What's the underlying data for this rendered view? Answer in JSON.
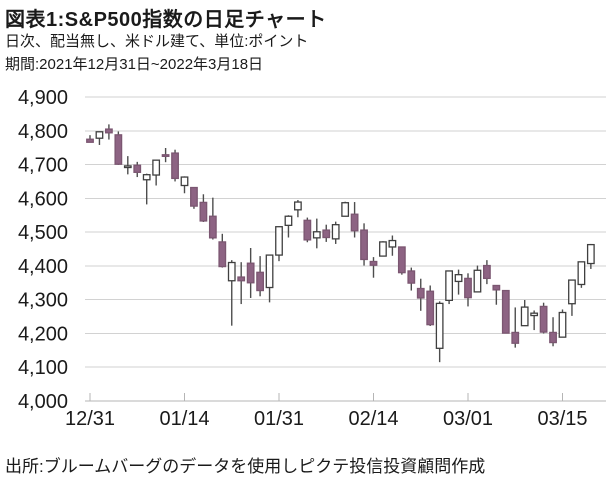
{
  "header": {
    "title": "図表1:S&P500指数の日足チャート",
    "subtitle": "日次、配当無し、米ドル建て、単位:ポイント",
    "period": "期間:2021年12月31日~2022年3月18日"
  },
  "footer": {
    "source": "出所:ブルームバーグのデータを使用しピクテ投信投資顧問作成"
  },
  "chart_data": {
    "type": "candlestick",
    "title": "S&P500指数の日足チャート",
    "xlabel": "",
    "ylabel": "ポイント",
    "ylim": [
      4000,
      4900
    ],
    "y_tick_step": 100,
    "y_tick_labels": [
      "4,000",
      "4,100",
      "4,200",
      "4,300",
      "4,400",
      "4,500",
      "4,600",
      "4,700",
      "4,800",
      "4,900"
    ],
    "x_tick_labels": [
      "12/31",
      "01/14",
      "01/31",
      "02/14",
      "03/01",
      "03/15"
    ],
    "x_tick_indices": [
      0,
      10,
      20,
      30,
      40,
      50
    ],
    "grid": true,
    "legend": "none",
    "dates": [
      "12/31",
      "01/03",
      "01/04",
      "01/05",
      "01/06",
      "01/07",
      "01/10",
      "01/11",
      "01/12",
      "01/13",
      "01/14",
      "01/18",
      "01/19",
      "01/20",
      "01/21",
      "01/24",
      "01/25",
      "01/26",
      "01/27",
      "01/28",
      "01/31",
      "02/01",
      "02/02",
      "02/03",
      "02/04",
      "02/07",
      "02/08",
      "02/09",
      "02/10",
      "02/11",
      "02/14",
      "02/15",
      "02/16",
      "02/17",
      "02/18",
      "02/22",
      "02/23",
      "02/24",
      "02/25",
      "02/28",
      "03/01",
      "03/02",
      "03/03",
      "03/04",
      "03/07",
      "03/08",
      "03/09",
      "03/10",
      "03/11",
      "03/14",
      "03/15",
      "03/16",
      "03/17",
      "03/18"
    ],
    "ohlc": [
      [
        4775,
        4787,
        4766,
        4766
      ],
      [
        4778,
        4797,
        4758,
        4797
      ],
      [
        4805,
        4819,
        4774,
        4794
      ],
      [
        4788,
        4798,
        4699,
        4701
      ],
      [
        4693,
        4725,
        4671,
        4696
      ],
      [
        4698,
        4708,
        4663,
        4677
      ],
      [
        4655,
        4673,
        4582,
        4670
      ],
      [
        4669,
        4714,
        4638,
        4713
      ],
      [
        4729,
        4749,
        4707,
        4726
      ],
      [
        4734,
        4744,
        4650,
        4659
      ],
      [
        4638,
        4665,
        4615,
        4663
      ],
      [
        4632,
        4632,
        4569,
        4577
      ],
      [
        4588,
        4612,
        4530,
        4533
      ],
      [
        4547,
        4602,
        4478,
        4483
      ],
      [
        4471,
        4495,
        4395,
        4398
      ],
      [
        4356,
        4417,
        4223,
        4410
      ],
      [
        4367,
        4411,
        4287,
        4356
      ],
      [
        4408,
        4453,
        4305,
        4350
      ],
      [
        4381,
        4429,
        4310,
        4327
      ],
      [
        4336,
        4433,
        4292,
        4432
      ],
      [
        4432,
        4517,
        4414,
        4516
      ],
      [
        4520,
        4550,
        4484,
        4547
      ],
      [
        4566,
        4595,
        4544,
        4589
      ],
      [
        4535,
        4543,
        4470,
        4477
      ],
      [
        4483,
        4540,
        4452,
        4501
      ],
      [
        4506,
        4522,
        4471,
        4484
      ],
      [
        4480,
        4531,
        4465,
        4522
      ],
      [
        4547,
        4590,
        4547,
        4587
      ],
      [
        4553,
        4589,
        4484,
        4504
      ],
      [
        4506,
        4526,
        4401,
        4419
      ],
      [
        4413,
        4426,
        4365,
        4402
      ],
      [
        4429,
        4473,
        4429,
        4471
      ],
      [
        4456,
        4490,
        4430,
        4475
      ],
      [
        4456,
        4456,
        4374,
        4380
      ],
      [
        4385,
        4395,
        4327,
        4349
      ],
      [
        4333,
        4362,
        4267,
        4305
      ],
      [
        4325,
        4342,
        4222,
        4226
      ],
      [
        4156,
        4295,
        4115,
        4289
      ],
      [
        4298,
        4385,
        4287,
        4385
      ],
      [
        4354,
        4389,
        4315,
        4374
      ],
      [
        4363,
        4378,
        4280,
        4306
      ],
      [
        4323,
        4401,
        4323,
        4387
      ],
      [
        4401,
        4417,
        4346,
        4363
      ],
      [
        4342,
        4342,
        4285,
        4329
      ],
      [
        4327,
        4327,
        4200,
        4201
      ],
      [
        4203,
        4277,
        4158,
        4171
      ],
      [
        4223,
        4299,
        4223,
        4278
      ],
      [
        4253,
        4268,
        4210,
        4260
      ],
      [
        4280,
        4291,
        4200,
        4204
      ],
      [
        4203,
        4248,
        4162,
        4173
      ],
      [
        4189,
        4271,
        4188,
        4262
      ],
      [
        4288,
        4359,
        4252,
        4358
      ],
      [
        4345,
        4413,
        4335,
        4412
      ],
      [
        4407,
        4465,
        4391,
        4463
      ]
    ],
    "colors": {
      "up_fill": "#ffffff",
      "up_border": "#3f3f3f",
      "down_fill": "#8d6383",
      "down_border": "#7b5671",
      "wick": "#4d4d4d",
      "grid": "#d2d2d2",
      "axis": "#b5b5b5",
      "text": "#1a1a1a",
      "background": "#ffffff"
    }
  }
}
